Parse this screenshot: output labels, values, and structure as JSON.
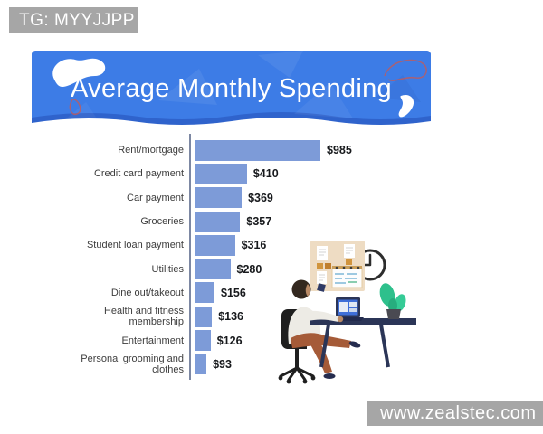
{
  "page": {
    "watermark": "TG: MYYJJPP",
    "website": "www.zealstec.com"
  },
  "banner": {
    "title": "Average Monthly Spending"
  },
  "chart_data": {
    "type": "bar",
    "orientation": "horizontal",
    "title": "Average Monthly Spending",
    "categories": [
      "Rent/mortgage",
      "Credit card payment",
      "Car payment",
      "Groceries",
      "Student loan payment",
      "Utilities",
      "Dine out/takeout",
      "Health and fitness membership",
      "Entertainment",
      "Personal grooming and clothes"
    ],
    "values": [
      985,
      410,
      369,
      357,
      316,
      280,
      156,
      136,
      126,
      93
    ],
    "value_labels": [
      "$985",
      "$410",
      "$369",
      "$357",
      "$316",
      "$280",
      "$156",
      "$136",
      "$126",
      "$93"
    ],
    "xlim": [
      0,
      1000
    ],
    "grid": false,
    "legend": false,
    "bar_color": "#7d9bd8",
    "axis_color": "#7d88a3"
  },
  "colors": {
    "banner_blue": "#3d7ce6",
    "banner_blue_dark": "#2f63cc",
    "badge_gray": "#a6a6a6"
  },
  "illustration": {
    "alt": "Person seated on an office chair working on a laptop at a desk, with a potted plant, pin board with notes and a wall clock"
  }
}
